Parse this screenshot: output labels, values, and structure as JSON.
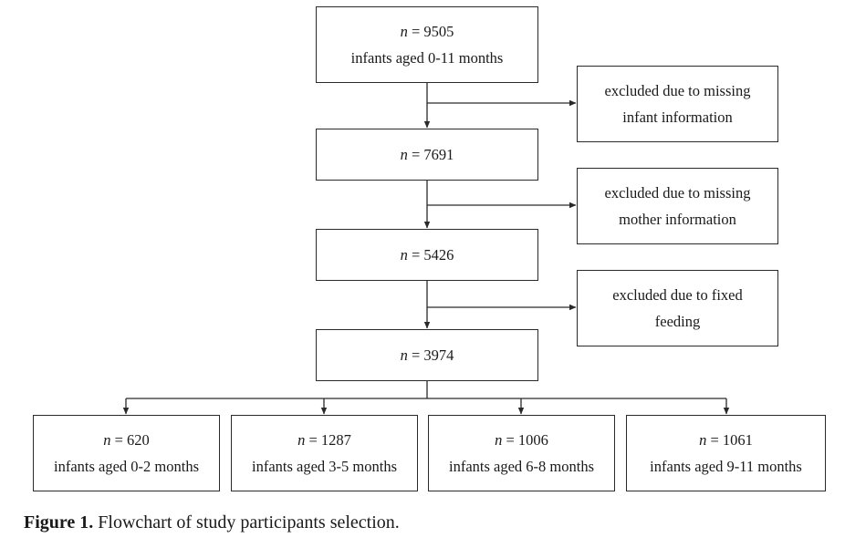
{
  "flow": {
    "nodes": [
      {
        "n_symbol": "n",
        "n_value": "= 9505",
        "desc": "infants aged 0-11 months"
      },
      {
        "n_symbol": "n",
        "n_value": "= 7691"
      },
      {
        "n_symbol": "n",
        "n_value": "= 5426"
      },
      {
        "n_symbol": "n",
        "n_value": "= 3974"
      }
    ],
    "exclusions": [
      {
        "line1": "excluded due to missing",
        "line2": "infant information"
      },
      {
        "line1": "excluded due to missing",
        "line2": "mother information"
      },
      {
        "line1": "excluded due to fixed",
        "line2": "feeding"
      }
    ],
    "groups": [
      {
        "n_symbol": "n",
        "n_value": "= 620",
        "desc": "infants aged 0-2 months"
      },
      {
        "n_symbol": "n",
        "n_value": "= 1287",
        "desc": "infants aged 3-5 months"
      },
      {
        "n_symbol": "n",
        "n_value": "= 1006",
        "desc": "infants aged 6-8 months"
      },
      {
        "n_symbol": "n",
        "n_value": "= 1061",
        "desc": "infants aged 9-11 months"
      }
    ]
  },
  "caption": {
    "label": "Figure 1.",
    "text": " Flowchart of study participants selection."
  },
  "colors": {
    "line": "#2a2a2a",
    "text": "#1a1a1a",
    "background": "#ffffff"
  }
}
